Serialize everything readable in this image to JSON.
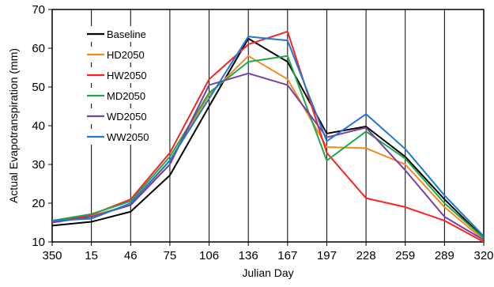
{
  "chart_data": {
    "type": "line",
    "xlabel": "Julian Day",
    "ylabel": "Actual Evapotranspiration (mm)",
    "ylim": [
      10,
      70
    ],
    "yticks": [
      10,
      20,
      30,
      40,
      50,
      60,
      70
    ],
    "categories": [
      "350",
      "15",
      "46",
      "75",
      "106",
      "136",
      "167",
      "197",
      "228",
      "259",
      "289",
      "320"
    ],
    "grid": "vertical lines at each category",
    "legend_position": "top-left",
    "series": [
      {
        "name": "Baseline",
        "color": "#000000",
        "values": [
          14.2,
          15.2,
          17.8,
          27.2,
          45.0,
          62.5,
          56.5,
          38.0,
          39.8,
          32.0,
          21.0,
          11.0
        ]
      },
      {
        "name": "HD2050",
        "color": "#f28a1e",
        "values": [
          15.0,
          16.8,
          19.5,
          31.0,
          48.0,
          58.0,
          52.0,
          34.5,
          34.2,
          30.0,
          19.0,
          10.5
        ]
      },
      {
        "name": "HW2050",
        "color": "#ff2020",
        "values": [
          15.0,
          17.0,
          21.0,
          33.0,
          52.0,
          61.0,
          64.3,
          33.0,
          21.3,
          19.0,
          15.5,
          10.0
        ]
      },
      {
        "name": "MD2050",
        "color": "#1ea84a",
        "values": [
          15.5,
          17.2,
          20.5,
          32.0,
          48.5,
          56.5,
          58.0,
          31.0,
          38.5,
          31.5,
          20.0,
          11.0
        ]
      },
      {
        "name": "WD2050",
        "color": "#7a3fa0",
        "values": [
          15.0,
          16.5,
          19.5,
          30.0,
          50.5,
          53.5,
          50.5,
          37.0,
          39.5,
          28.5,
          16.5,
          10.5
        ]
      },
      {
        "name": "WW2050",
        "color": "#1f78d1",
        "values": [
          15.5,
          16.0,
          20.0,
          31.0,
          47.0,
          63.0,
          62.0,
          36.0,
          43.0,
          34.0,
          22.0,
          11.5
        ]
      }
    ]
  }
}
